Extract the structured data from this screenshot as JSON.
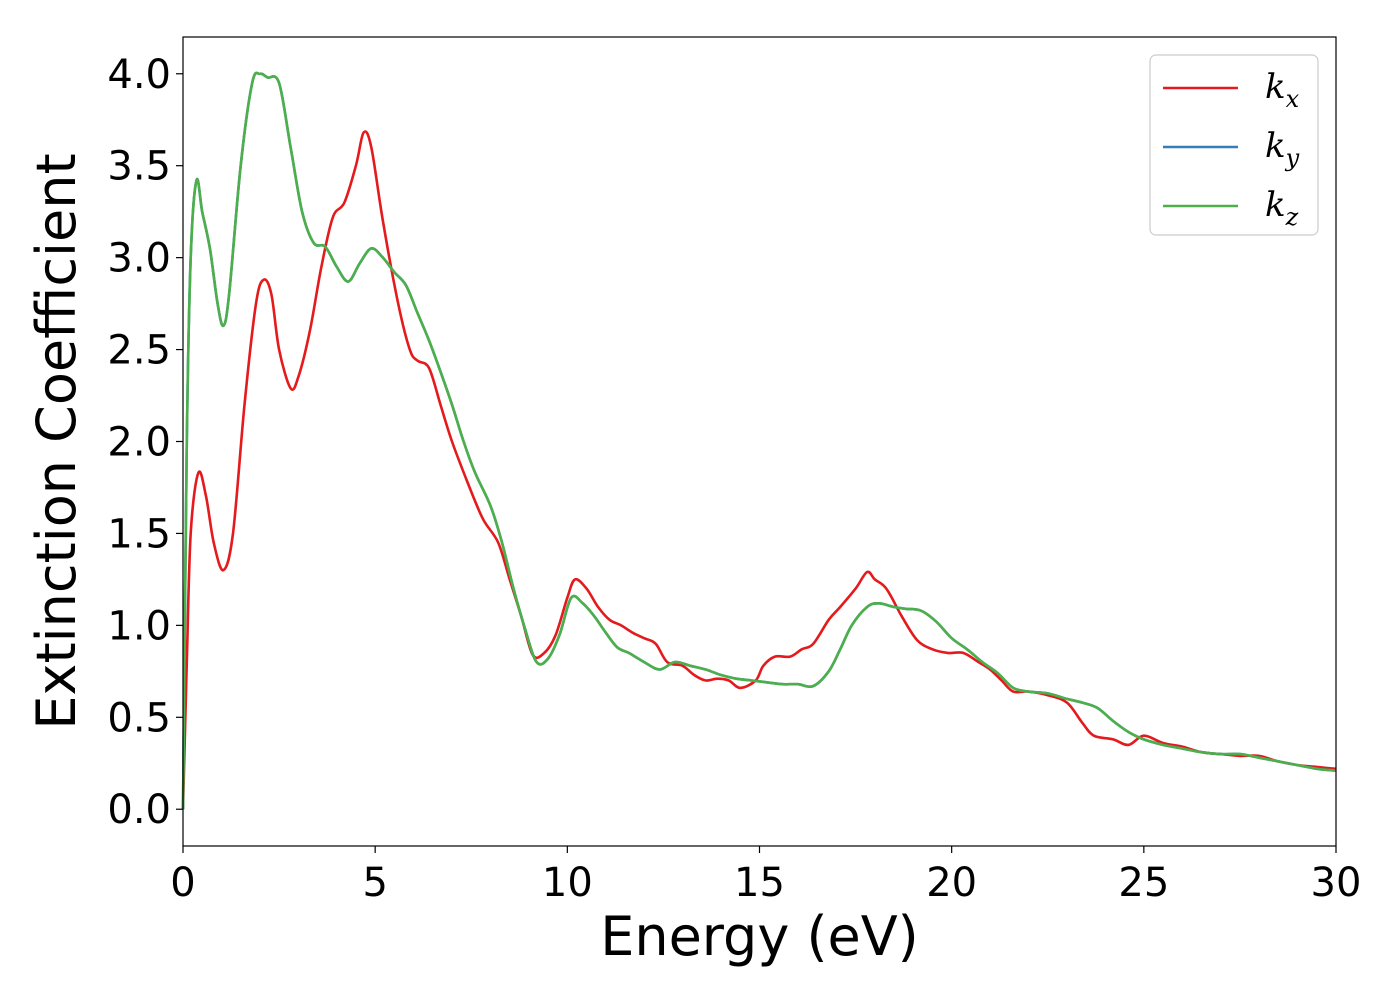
{
  "chart_data": {
    "type": "line",
    "title": "",
    "xlabel": "Energy (eV)",
    "ylabel": "Extinction Coefficient",
    "xlim": [
      0,
      30
    ],
    "ylim": [
      -0.2,
      4.2
    ],
    "xticks": [
      "0",
      "5",
      "10",
      "15",
      "20",
      "25",
      "30"
    ],
    "yticks": [
      "0.0",
      "0.5",
      "1.0",
      "1.5",
      "2.0",
      "2.5",
      "3.0",
      "3.5",
      "4.0"
    ],
    "grid": false,
    "legend_position": "top-right",
    "series": [
      {
        "name": "k",
        "subscript": "x",
        "color": "#e41a1c",
        "points": [
          [
            0,
            0
          ],
          [
            0.1,
            0.8
          ],
          [
            0.2,
            1.5
          ],
          [
            0.4,
            1.83
          ],
          [
            0.6,
            1.7
          ],
          [
            0.8,
            1.45
          ],
          [
            1.05,
            1.3
          ],
          [
            1.3,
            1.5
          ],
          [
            1.6,
            2.2
          ],
          [
            1.9,
            2.75
          ],
          [
            2.1,
            2.88
          ],
          [
            2.3,
            2.8
          ],
          [
            2.5,
            2.5
          ],
          [
            2.8,
            2.29
          ],
          [
            3.0,
            2.35
          ],
          [
            3.3,
            2.6
          ],
          [
            3.6,
            2.95
          ],
          [
            3.9,
            3.22
          ],
          [
            4.2,
            3.3
          ],
          [
            4.5,
            3.5
          ],
          [
            4.7,
            3.68
          ],
          [
            4.9,
            3.6
          ],
          [
            5.2,
            3.2
          ],
          [
            5.6,
            2.75
          ],
          [
            5.9,
            2.5
          ],
          [
            6.1,
            2.44
          ],
          [
            6.4,
            2.4
          ],
          [
            6.7,
            2.2
          ],
          [
            7.0,
            2.0
          ],
          [
            7.4,
            1.78
          ],
          [
            7.8,
            1.58
          ],
          [
            8.2,
            1.45
          ],
          [
            8.5,
            1.25
          ],
          [
            8.8,
            1.05
          ],
          [
            9.1,
            0.84
          ],
          [
            9.4,
            0.85
          ],
          [
            9.7,
            0.95
          ],
          [
            10.0,
            1.15
          ],
          [
            10.2,
            1.25
          ],
          [
            10.5,
            1.2
          ],
          [
            10.8,
            1.1
          ],
          [
            11.1,
            1.03
          ],
          [
            11.4,
            1.0
          ],
          [
            11.7,
            0.96
          ],
          [
            12.0,
            0.93
          ],
          [
            12.3,
            0.9
          ],
          [
            12.6,
            0.8
          ],
          [
            13.0,
            0.78
          ],
          [
            13.3,
            0.73
          ],
          [
            13.6,
            0.7
          ],
          [
            13.9,
            0.71
          ],
          [
            14.2,
            0.7
          ],
          [
            14.5,
            0.66
          ],
          [
            14.9,
            0.7
          ],
          [
            15.1,
            0.78
          ],
          [
            15.4,
            0.83
          ],
          [
            15.8,
            0.83
          ],
          [
            16.1,
            0.87
          ],
          [
            16.4,
            0.9
          ],
          [
            16.8,
            1.03
          ],
          [
            17.1,
            1.1
          ],
          [
            17.5,
            1.2
          ],
          [
            17.8,
            1.29
          ],
          [
            18.0,
            1.25
          ],
          [
            18.3,
            1.2
          ],
          [
            18.7,
            1.05
          ],
          [
            19.1,
            0.92
          ],
          [
            19.5,
            0.87
          ],
          [
            19.9,
            0.85
          ],
          [
            20.3,
            0.85
          ],
          [
            20.7,
            0.8
          ],
          [
            21.0,
            0.76
          ],
          [
            21.3,
            0.7
          ],
          [
            21.6,
            0.64
          ],
          [
            22.0,
            0.64
          ],
          [
            22.5,
            0.62
          ],
          [
            23.0,
            0.58
          ],
          [
            23.4,
            0.47
          ],
          [
            23.7,
            0.4
          ],
          [
            24.2,
            0.38
          ],
          [
            24.6,
            0.35
          ],
          [
            25.0,
            0.4
          ],
          [
            25.5,
            0.36
          ],
          [
            26.0,
            0.34
          ],
          [
            26.5,
            0.31
          ],
          [
            27.0,
            0.3
          ],
          [
            27.5,
            0.29
          ],
          [
            28.0,
            0.29
          ],
          [
            28.5,
            0.26
          ],
          [
            29.0,
            0.24
          ],
          [
            29.5,
            0.23
          ],
          [
            30.0,
            0.22
          ]
        ]
      },
      {
        "name": "k",
        "subscript": "y",
        "color": "#377eb8",
        "points": [
          [
            0,
            0
          ],
          [
            0.1,
            2.0
          ],
          [
            0.2,
            3.0
          ],
          [
            0.35,
            3.42
          ],
          [
            0.5,
            3.25
          ],
          [
            0.7,
            3.05
          ],
          [
            0.9,
            2.75
          ],
          [
            1.05,
            2.63
          ],
          [
            1.2,
            2.8
          ],
          [
            1.5,
            3.5
          ],
          [
            1.8,
            3.95
          ],
          [
            2.0,
            4.0
          ],
          [
            2.2,
            3.98
          ],
          [
            2.5,
            3.95
          ],
          [
            2.8,
            3.6
          ],
          [
            3.1,
            3.25
          ],
          [
            3.4,
            3.08
          ],
          [
            3.7,
            3.06
          ],
          [
            4.0,
            2.95
          ],
          [
            4.3,
            2.87
          ],
          [
            4.6,
            2.97
          ],
          [
            4.9,
            3.05
          ],
          [
            5.2,
            3.0
          ],
          [
            5.5,
            2.92
          ],
          [
            5.8,
            2.85
          ],
          [
            6.1,
            2.7
          ],
          [
            6.4,
            2.55
          ],
          [
            6.7,
            2.38
          ],
          [
            7.0,
            2.2
          ],
          [
            7.3,
            2.0
          ],
          [
            7.6,
            1.83
          ],
          [
            8.0,
            1.65
          ],
          [
            8.3,
            1.45
          ],
          [
            8.6,
            1.2
          ],
          [
            8.9,
            0.98
          ],
          [
            9.2,
            0.8
          ],
          [
            9.5,
            0.82
          ],
          [
            9.8,
            0.95
          ],
          [
            10.1,
            1.15
          ],
          [
            10.4,
            1.12
          ],
          [
            10.7,
            1.05
          ],
          [
            11.0,
            0.96
          ],
          [
            11.3,
            0.88
          ],
          [
            11.6,
            0.85
          ],
          [
            12.0,
            0.8
          ],
          [
            12.4,
            0.76
          ],
          [
            12.8,
            0.8
          ],
          [
            13.2,
            0.78
          ],
          [
            13.6,
            0.76
          ],
          [
            14.0,
            0.73
          ],
          [
            14.4,
            0.71
          ],
          [
            14.8,
            0.7
          ],
          [
            15.2,
            0.69
          ],
          [
            15.6,
            0.68
          ],
          [
            16.0,
            0.68
          ],
          [
            16.4,
            0.67
          ],
          [
            16.8,
            0.75
          ],
          [
            17.1,
            0.87
          ],
          [
            17.4,
            1.0
          ],
          [
            17.8,
            1.1
          ],
          [
            18.1,
            1.12
          ],
          [
            18.5,
            1.1
          ],
          [
            18.8,
            1.09
          ],
          [
            19.2,
            1.08
          ],
          [
            19.6,
            1.02
          ],
          [
            20.0,
            0.93
          ],
          [
            20.4,
            0.87
          ],
          [
            20.8,
            0.8
          ],
          [
            21.2,
            0.74
          ],
          [
            21.6,
            0.66
          ],
          [
            22.0,
            0.64
          ],
          [
            22.5,
            0.63
          ],
          [
            23.0,
            0.6
          ],
          [
            23.4,
            0.58
          ],
          [
            23.8,
            0.55
          ],
          [
            24.2,
            0.48
          ],
          [
            24.6,
            0.42
          ],
          [
            25.0,
            0.38
          ],
          [
            25.5,
            0.35
          ],
          [
            26.0,
            0.33
          ],
          [
            26.5,
            0.31
          ],
          [
            27.0,
            0.3
          ],
          [
            27.5,
            0.3
          ],
          [
            28.0,
            0.28
          ],
          [
            28.5,
            0.26
          ],
          [
            29.0,
            0.24
          ],
          [
            29.5,
            0.22
          ],
          [
            30.0,
            0.21
          ]
        ]
      },
      {
        "name": "k",
        "subscript": "z",
        "color": "#4daf4a",
        "points": [
          [
            0,
            0
          ],
          [
            0.1,
            2.0
          ],
          [
            0.2,
            3.0
          ],
          [
            0.35,
            3.42
          ],
          [
            0.5,
            3.25
          ],
          [
            0.7,
            3.05
          ],
          [
            0.9,
            2.75
          ],
          [
            1.05,
            2.63
          ],
          [
            1.2,
            2.8
          ],
          [
            1.5,
            3.5
          ],
          [
            1.8,
            3.95
          ],
          [
            2.0,
            4.0
          ],
          [
            2.2,
            3.98
          ],
          [
            2.5,
            3.95
          ],
          [
            2.8,
            3.6
          ],
          [
            3.1,
            3.25
          ],
          [
            3.4,
            3.08
          ],
          [
            3.7,
            3.06
          ],
          [
            4.0,
            2.95
          ],
          [
            4.3,
            2.87
          ],
          [
            4.6,
            2.97
          ],
          [
            4.9,
            3.05
          ],
          [
            5.2,
            3.0
          ],
          [
            5.5,
            2.92
          ],
          [
            5.8,
            2.85
          ],
          [
            6.1,
            2.7
          ],
          [
            6.4,
            2.55
          ],
          [
            6.7,
            2.38
          ],
          [
            7.0,
            2.2
          ],
          [
            7.3,
            2.0
          ],
          [
            7.6,
            1.83
          ],
          [
            8.0,
            1.65
          ],
          [
            8.3,
            1.45
          ],
          [
            8.6,
            1.2
          ],
          [
            8.9,
            0.98
          ],
          [
            9.2,
            0.8
          ],
          [
            9.5,
            0.82
          ],
          [
            9.8,
            0.95
          ],
          [
            10.1,
            1.15
          ],
          [
            10.4,
            1.12
          ],
          [
            10.7,
            1.05
          ],
          [
            11.0,
            0.96
          ],
          [
            11.3,
            0.88
          ],
          [
            11.6,
            0.85
          ],
          [
            12.0,
            0.8
          ],
          [
            12.4,
            0.76
          ],
          [
            12.8,
            0.8
          ],
          [
            13.2,
            0.78
          ],
          [
            13.6,
            0.76
          ],
          [
            14.0,
            0.73
          ],
          [
            14.4,
            0.71
          ],
          [
            14.8,
            0.7
          ],
          [
            15.2,
            0.69
          ],
          [
            15.6,
            0.68
          ],
          [
            16.0,
            0.68
          ],
          [
            16.4,
            0.67
          ],
          [
            16.8,
            0.75
          ],
          [
            17.1,
            0.87
          ],
          [
            17.4,
            1.0
          ],
          [
            17.8,
            1.1
          ],
          [
            18.1,
            1.12
          ],
          [
            18.5,
            1.1
          ],
          [
            18.8,
            1.09
          ],
          [
            19.2,
            1.08
          ],
          [
            19.6,
            1.02
          ],
          [
            20.0,
            0.93
          ],
          [
            20.4,
            0.87
          ],
          [
            20.8,
            0.8
          ],
          [
            21.2,
            0.74
          ],
          [
            21.6,
            0.66
          ],
          [
            22.0,
            0.64
          ],
          [
            22.5,
            0.63
          ],
          [
            23.0,
            0.6
          ],
          [
            23.4,
            0.58
          ],
          [
            23.8,
            0.55
          ],
          [
            24.2,
            0.48
          ],
          [
            24.6,
            0.42
          ],
          [
            25.0,
            0.38
          ],
          [
            25.5,
            0.35
          ],
          [
            26.0,
            0.33
          ],
          [
            26.5,
            0.31
          ],
          [
            27.0,
            0.3
          ],
          [
            27.5,
            0.3
          ],
          [
            28.0,
            0.28
          ],
          [
            28.5,
            0.26
          ],
          [
            29.0,
            0.24
          ],
          [
            29.5,
            0.22
          ],
          [
            30.0,
            0.21
          ]
        ]
      }
    ]
  }
}
